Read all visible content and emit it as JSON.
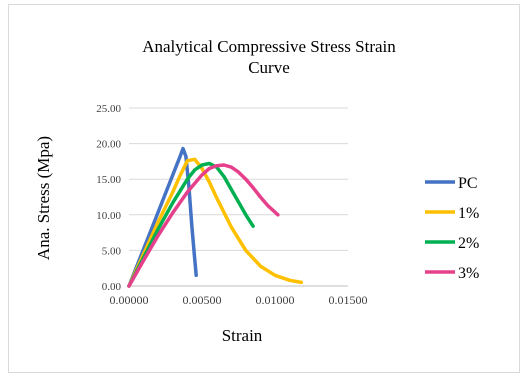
{
  "chart_data": {
    "type": "line",
    "title": "Analytical Compressive Stress Strain Curve",
    "title_lines": [
      "Analytical Compressive Stress Strain",
      "Curve"
    ],
    "xlabel": "Strain",
    "ylabel": "Ana. Stress (Mpa)",
    "xlim": [
      0,
      0.015
    ],
    "ylim": [
      0,
      25
    ],
    "x_ticks": [
      0,
      0.005,
      0.01,
      0.015
    ],
    "x_tick_labels": [
      "0.00000",
      "0.00500",
      "0.01000",
      "0.01500"
    ],
    "y_ticks": [
      0,
      5,
      10,
      15,
      20,
      25
    ],
    "y_tick_labels": [
      "0.00",
      "5.00",
      "10.00",
      "15.00",
      "20.00",
      "25.00"
    ],
    "grid": true,
    "legend_position": "right",
    "series": [
      {
        "name": "PC",
        "color": "#4472C4",
        "x": [
          0,
          0.0005,
          0.001,
          0.0015,
          0.002,
          0.0025,
          0.003,
          0.0035,
          0.0037,
          0.0039,
          0.0041,
          0.0043,
          0.0045,
          0.0046
        ],
        "y": [
          0,
          2.6,
          5.2,
          7.8,
          10.4,
          13.0,
          15.6,
          18.2,
          19.3,
          18.2,
          14.0,
          8.5,
          3.8,
          1.5
        ]
      },
      {
        "name": "1%",
        "color": "#FFC000",
        "x": [
          0,
          0.001,
          0.002,
          0.003,
          0.0035,
          0.004,
          0.0045,
          0.005,
          0.0055,
          0.006,
          0.007,
          0.008,
          0.009,
          0.01,
          0.011,
          0.0118
        ],
        "y": [
          0,
          4.5,
          9.0,
          13.2,
          15.5,
          17.6,
          17.8,
          16.5,
          14.6,
          12.4,
          8.3,
          5.0,
          2.8,
          1.5,
          0.8,
          0.5
        ]
      },
      {
        "name": "2%",
        "color": "#00B050",
        "x": [
          0,
          0.001,
          0.002,
          0.003,
          0.004,
          0.0045,
          0.005,
          0.0055,
          0.006,
          0.0065,
          0.007,
          0.0075,
          0.008,
          0.0085
        ],
        "y": [
          0,
          4.0,
          8.0,
          11.7,
          15.0,
          16.3,
          17.0,
          17.2,
          16.7,
          15.4,
          13.6,
          11.8,
          10.0,
          8.4
        ]
      },
      {
        "name": "3%",
        "color": "#E6408C",
        "x": [
          0,
          0.001,
          0.002,
          0.003,
          0.004,
          0.005,
          0.0055,
          0.006,
          0.0065,
          0.007,
          0.0075,
          0.008,
          0.0085,
          0.009,
          0.0095,
          0.0102
        ],
        "y": [
          0,
          3.6,
          7.1,
          10.3,
          13.2,
          15.6,
          16.5,
          16.9,
          17.0,
          16.7,
          16.0,
          15.0,
          13.8,
          12.5,
          11.3,
          10.0
        ]
      }
    ]
  }
}
